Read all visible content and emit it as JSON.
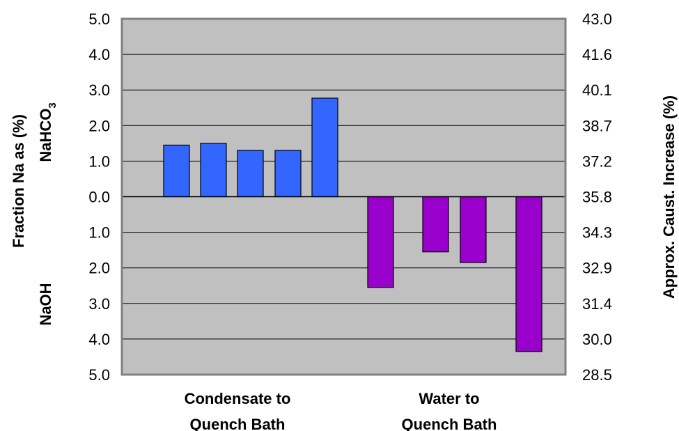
{
  "chart_data": {
    "type": "bar",
    "left_axis": {
      "ticks": [
        "5.0",
        "4.0",
        "3.0",
        "2.0",
        "1.0",
        "0.0",
        "1.0",
        "2.0",
        "3.0",
        "4.0",
        "5.0"
      ],
      "ylim": [
        -5,
        5
      ],
      "label": "Fraction Na as (%)",
      "top_label": "NaHCO",
      "top_label_sub": "3",
      "bottom_label": "NaOH"
    },
    "right_axis": {
      "ticks": [
        "43.0",
        "41.6",
        "40.1",
        "38.7",
        "37.2",
        "35.8",
        "34.3",
        "32.9",
        "31.4",
        "30.0",
        "28.5"
      ],
      "label": "Approx. Caust. Increase (%)"
    },
    "groups": [
      {
        "line1": "Condensate to",
        "line2": "Quench Bath",
        "values": [
          1.45,
          1.5,
          1.3,
          1.3,
          2.77
        ],
        "color": "#3366ff"
      },
      {
        "line1": "Water to",
        "line2": "Quench Bath",
        "values": [
          -2.55,
          -1.55,
          -1.85,
          -4.35
        ],
        "color": "#9900cc"
      }
    ],
    "plot_background": "#c0c0c0",
    "grid": true
  }
}
